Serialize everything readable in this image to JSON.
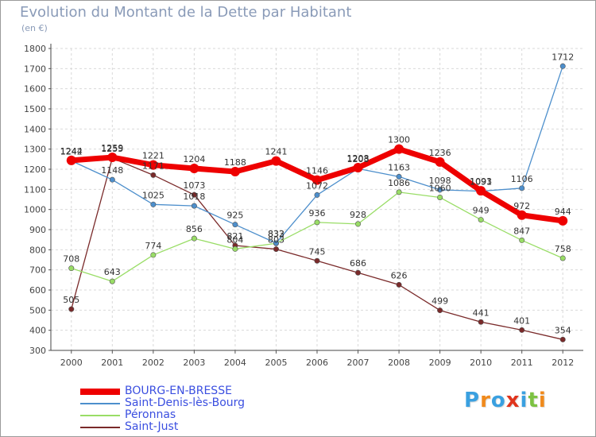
{
  "chart_data": {
    "type": "line",
    "title": "Evolution du Montant de la Dette par Habitant",
    "subtitle": "(en €)",
    "x": [
      "2000",
      "2001",
      "2002",
      "2003",
      "2004",
      "2005",
      "2006",
      "2007",
      "2008",
      "2009",
      "2010",
      "2011",
      "2012"
    ],
    "ylim": [
      300,
      1800
    ],
    "yticks": [
      "300",
      "400",
      "500",
      "600",
      "700",
      "800",
      "900",
      "1000",
      "1100",
      "1200",
      "1300",
      "1400",
      "1500",
      "1600",
      "1700",
      "1800"
    ],
    "grid": true,
    "legend_position": "bottom-left",
    "series": [
      {
        "name": "BOURG-EN-BRESSE",
        "color": "#ee0000",
        "values": [
          1244,
          1259,
          1221,
          1204,
          1188,
          1241,
          1146,
          1208,
          1300,
          1236,
          1093,
          972,
          944
        ]
      },
      {
        "name": "Saint-Denis-lès-Bourg",
        "color": "#4d8fcc",
        "values": [
          1242,
          1148,
          1025,
          1018,
          925,
          833,
          1072,
          1203,
          1163,
          1098,
          1091,
          1106,
          1712
        ]
      },
      {
        "name": "Péronnas",
        "color": "#99dd66",
        "values": [
          708,
          643,
          774,
          856,
          804,
          832,
          936,
          928,
          1086,
          1060,
          949,
          847,
          758
        ]
      },
      {
        "name": "Saint-Just",
        "color": "#7a2a2a",
        "values": [
          505,
          1255,
          1171,
          1073,
          821,
          803,
          745,
          686,
          626,
          499,
          441,
          401,
          354
        ]
      }
    ]
  },
  "logo": {
    "letters": [
      "P",
      "r",
      "o",
      "x",
      "i",
      "t",
      "i"
    ],
    "colors": [
      "#3aa0e0",
      "#f08a1c",
      "#3aa0e0",
      "#e0341c",
      "#3aa0e0",
      "#7cc242",
      "#f08a1c"
    ]
  }
}
